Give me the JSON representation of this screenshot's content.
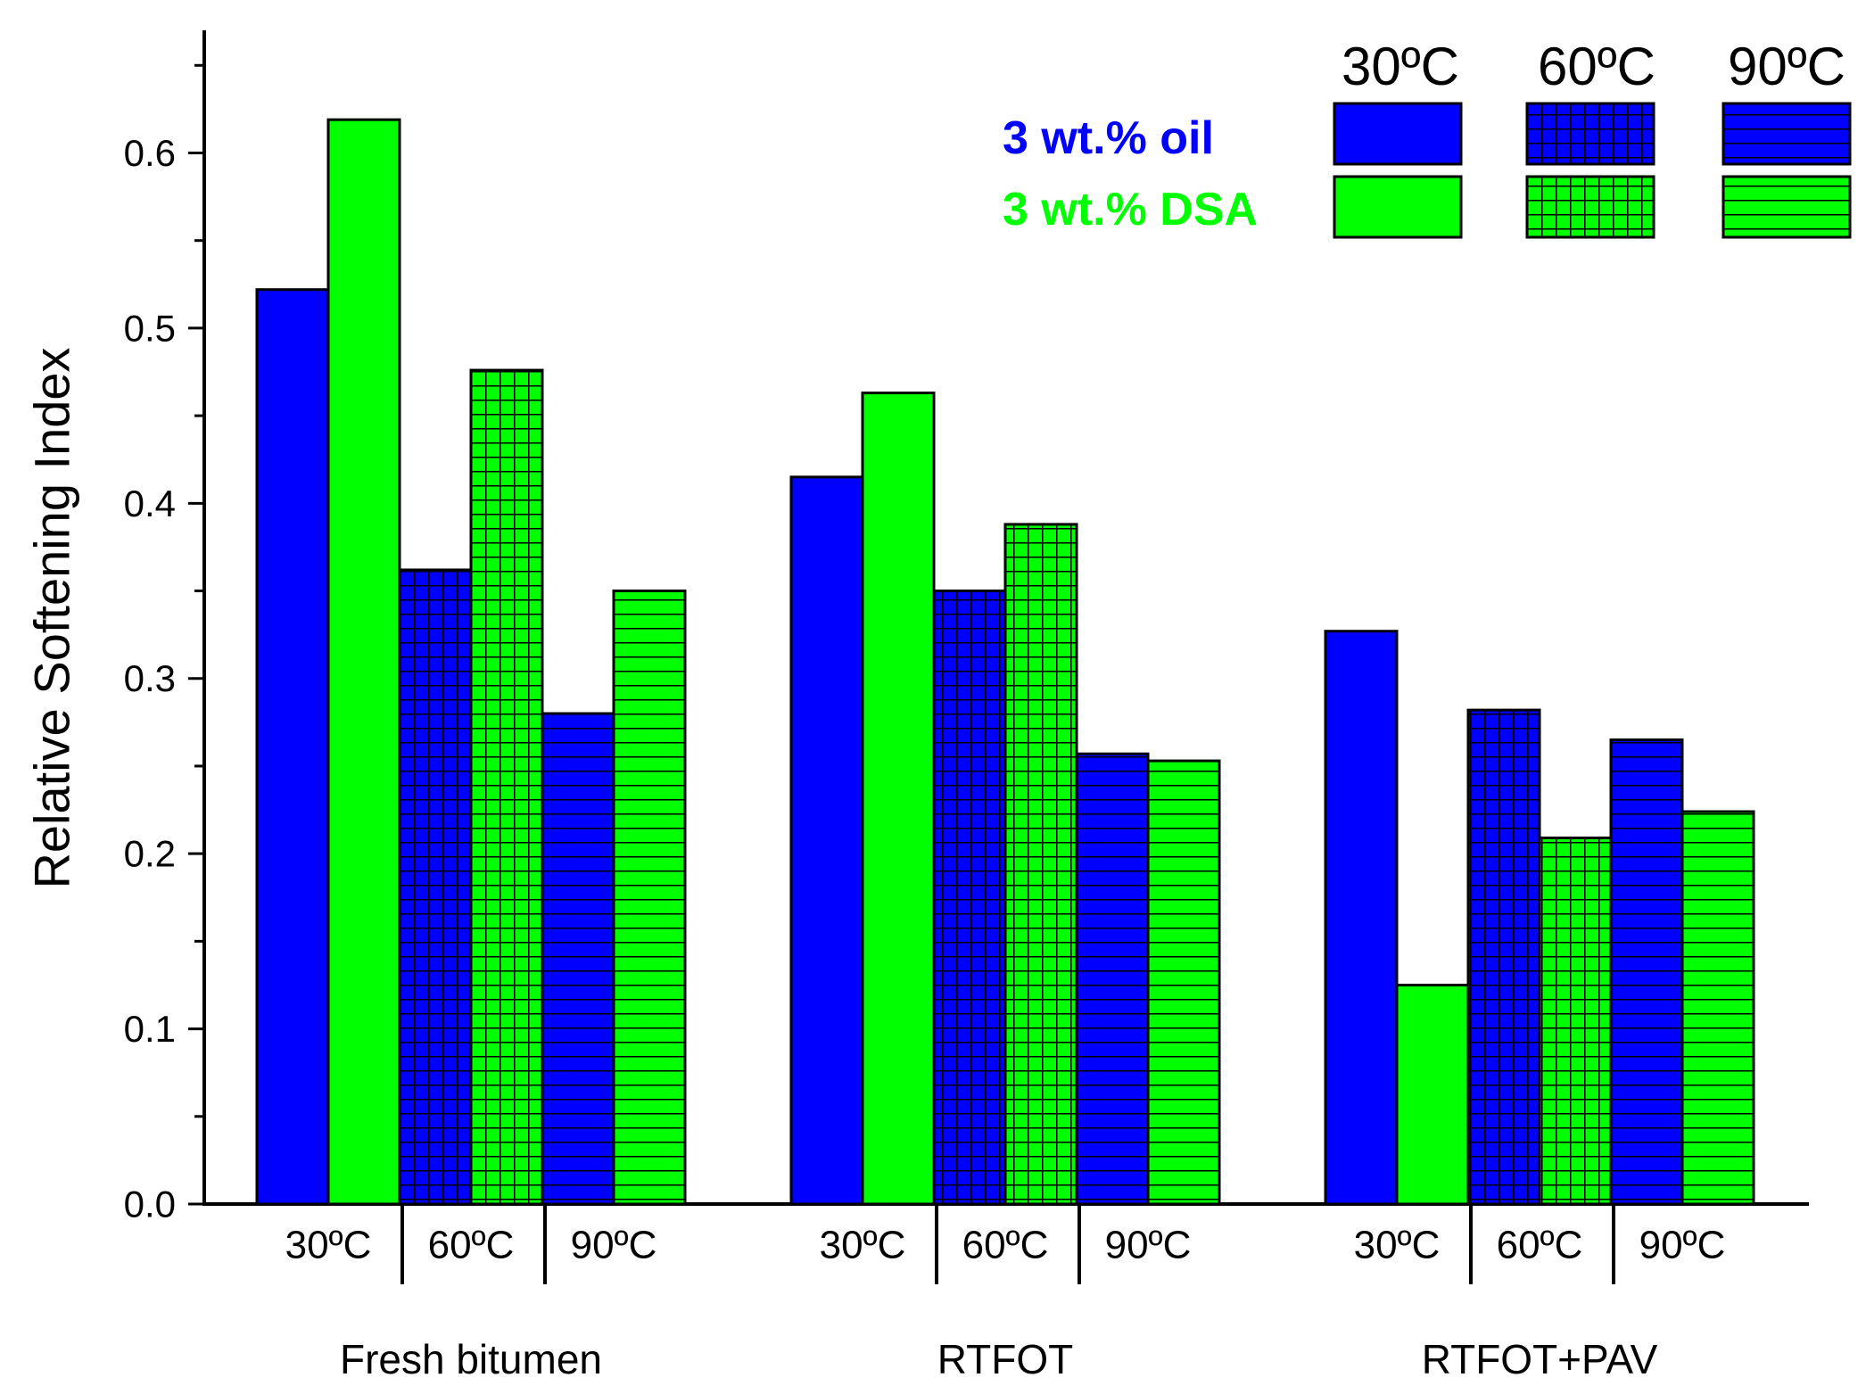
{
  "chart_data": {
    "type": "bar",
    "title": "",
    "xlabel": "",
    "ylabel": "Relative Softening Index",
    "ylim": [
      0.0,
      0.67
    ],
    "yticks": [
      "0.0",
      "0.1",
      "0.2",
      "0.3",
      "0.4",
      "0.5",
      "0.6"
    ],
    "grid": false,
    "groups": [
      "Fresh bitumen",
      "RTFOT",
      "RTFOT+PAV"
    ],
    "temperatures": [
      "30ºC",
      "60ºC",
      "90ºC"
    ],
    "series": [
      {
        "name": "3 wt.% oil",
        "color": "#0000ff",
        "values": [
          [
            0.522,
            0.362,
            0.28
          ],
          [
            0.415,
            0.35,
            0.257
          ],
          [
            0.327,
            0.282,
            0.265
          ]
        ]
      },
      {
        "name": "3 wt.% DSA",
        "color": "#00ff00",
        "values": [
          [
            0.619,
            0.476,
            0.35
          ],
          [
            0.463,
            0.388,
            0.253
          ],
          [
            0.125,
            0.209,
            0.224
          ]
        ]
      }
    ],
    "patterns": [
      "solid",
      "grid",
      "horizontal-lines"
    ],
    "legend": {
      "placement": "top-right",
      "temperatures": [
        "30ºC",
        "60ºC",
        "90ºC"
      ],
      "series": [
        "3 wt.% oil",
        "3 wt.% DSA"
      ]
    }
  }
}
